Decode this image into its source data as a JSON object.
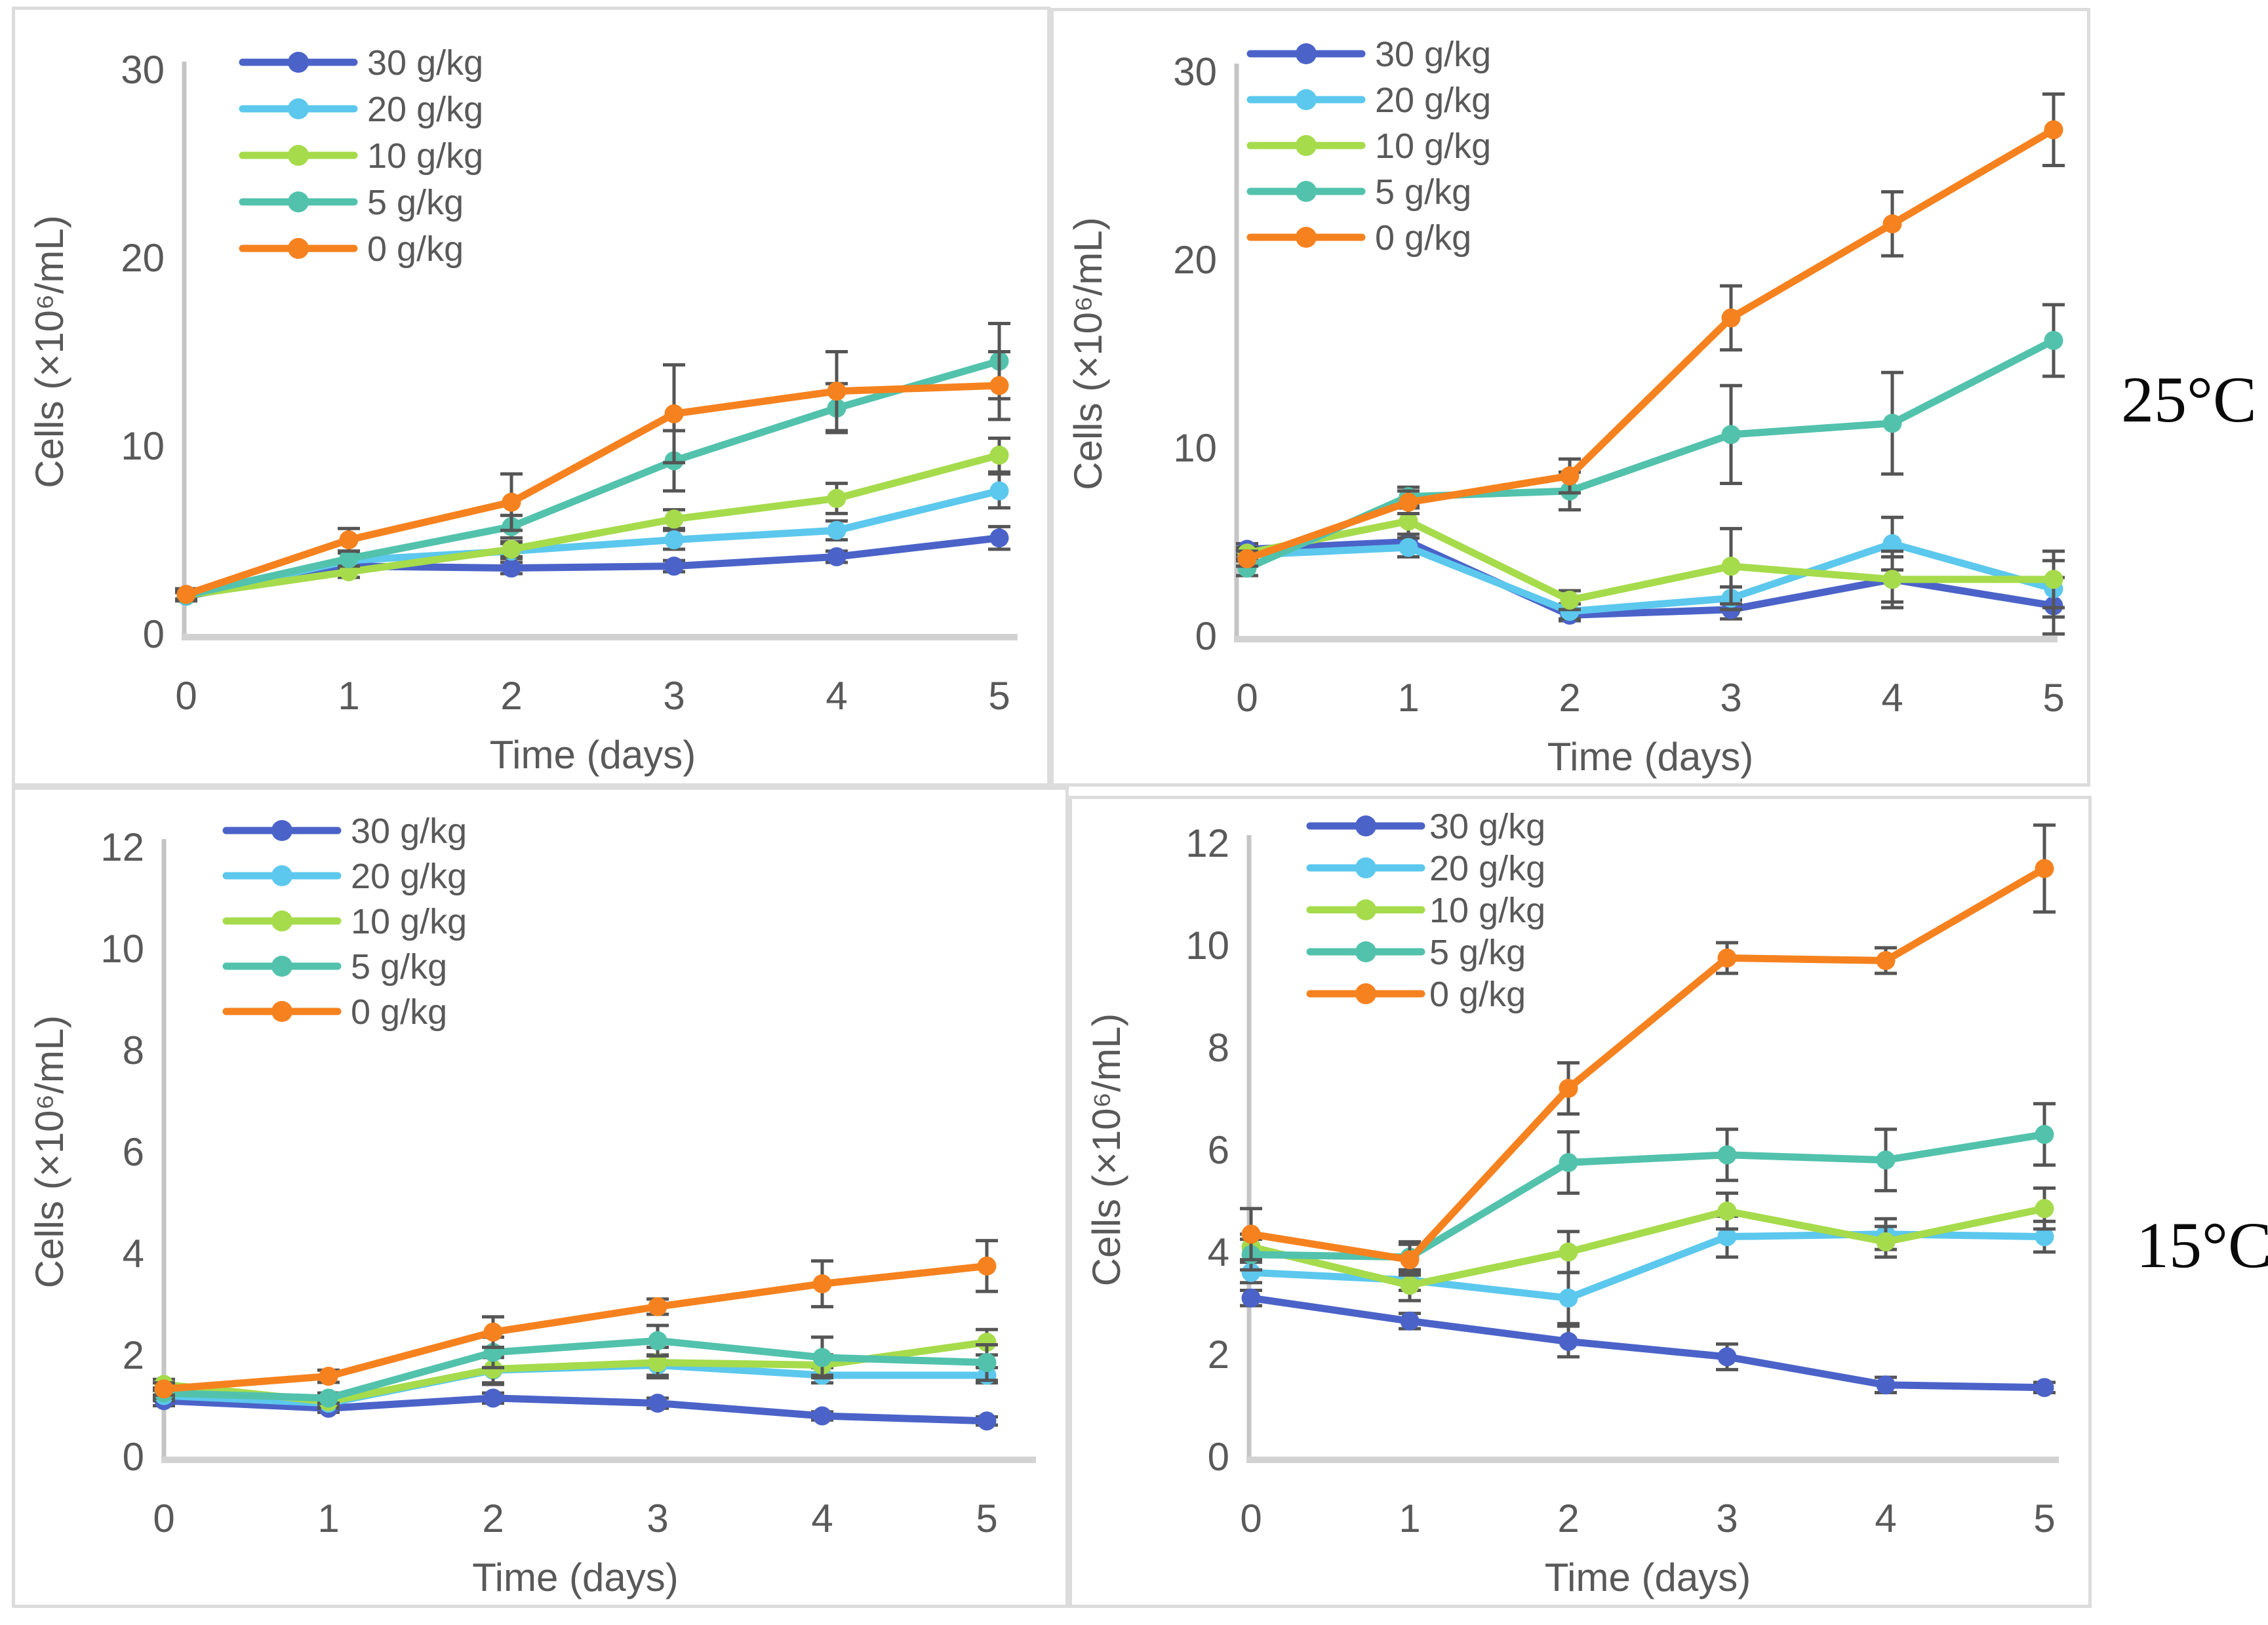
{
  "figure": {
    "temperature_labels": [
      {
        "text": "25°C"
      },
      {
        "text": "15°C"
      }
    ]
  },
  "axes_labels": {
    "x": "Time (days)",
    "y": "Cells (×10⁶/mL)"
  },
  "legend_items": [
    {
      "label": "30 g/kg",
      "color": "#4B63C8"
    },
    {
      "label": "20 g/kg",
      "color": "#5CC8ED"
    },
    {
      "label": "10 g/kg",
      "color": "#A6DB4C"
    },
    {
      "label": "5 g/kg",
      "color": "#52C2AC"
    },
    {
      "label": "0 g/kg",
      "color": "#F5821F"
    }
  ],
  "colors": {
    "tick_text": "#595959",
    "error_bar": "#555555",
    "y_axis_line": "#c5c5c5",
    "x_axis_line": "#d2d2d2",
    "panel_border": "#dcdcdc"
  },
  "chart_data": [
    {
      "id": "top-left",
      "type": "line",
      "title": "",
      "row_label": "25°C",
      "xlabel": "Time (days)",
      "ylabel": "Cells (×10⁶/mL)",
      "x": [
        0,
        1,
        2,
        3,
        4,
        5
      ],
      "ylim": [
        0,
        30
      ],
      "yticks": [
        0,
        10,
        20,
        30
      ],
      "grid": false,
      "legend_position": "top-left-inside",
      "error_bars": true,
      "series": [
        {
          "name": "30 g/kg",
          "color": "#4B63C8",
          "values": [
            2.0,
            3.6,
            3.5,
            3.6,
            4.1,
            5.1
          ],
          "errors": [
            0.2,
            0.3,
            0.3,
            0.3,
            0.3,
            0.6
          ]
        },
        {
          "name": "20 g/kg",
          "color": "#5CC8ED",
          "values": [
            2.0,
            3.9,
            4.4,
            5.0,
            5.5,
            7.6
          ],
          "errors": [
            0.2,
            0.4,
            0.4,
            0.5,
            0.5,
            0.9
          ]
        },
        {
          "name": "10 g/kg",
          "color": "#A6DB4C",
          "values": [
            2.05,
            3.3,
            4.5,
            6.1,
            7.2,
            9.5
          ],
          "errors": [
            0.2,
            0.3,
            0.4,
            0.5,
            0.8,
            0.9
          ]
        },
        {
          "name": "5 g/kg",
          "color": "#52C2AC",
          "values": [
            2.05,
            4.0,
            5.7,
            9.2,
            12.0,
            14.5
          ],
          "errors": [
            0.3,
            0.4,
            0.6,
            1.6,
            1.3,
            2.0
          ]
        },
        {
          "name": "0 g/kg",
          "color": "#F5821F",
          "values": [
            2.1,
            5.0,
            7.0,
            11.7,
            12.9,
            13.2
          ],
          "errors": [
            0.3,
            0.6,
            1.5,
            2.6,
            2.1,
            1.8
          ]
        }
      ]
    },
    {
      "id": "top-right",
      "type": "line",
      "title": "",
      "row_label": "25°C",
      "xlabel": "Time (days)",
      "ylabel": "Cells (×10⁶/mL)",
      "x": [
        0,
        1,
        2,
        3,
        4,
        5
      ],
      "ylim": [
        0,
        30
      ],
      "yticks": [
        0,
        10,
        20,
        30
      ],
      "grid": false,
      "legend_position": "top-left-inside",
      "error_bars": true,
      "series": [
        {
          "name": "30 g/kg",
          "color": "#4B63C8",
          "values": [
            4.6,
            5.0,
            1.1,
            1.4,
            3.0,
            1.6
          ],
          "errors": [
            0.3,
            0.4,
            0.3,
            0.5,
            1.2,
            1.5
          ]
        },
        {
          "name": "20 g/kg",
          "color": "#5CC8ED",
          "values": [
            4.3,
            4.7,
            1.3,
            2.0,
            4.9,
            2.5
          ],
          "errors": [
            0.3,
            0.5,
            0.4,
            0.6,
            1.4,
            1.5
          ]
        },
        {
          "name": "10 g/kg",
          "color": "#A6DB4C",
          "values": [
            4.4,
            6.1,
            1.9,
            3.7,
            3.0,
            3.0
          ],
          "errors": [
            0.3,
            0.7,
            0.5,
            2.0,
            1.5,
            1.5
          ]
        },
        {
          "name": "5 g/kg",
          "color": "#52C2AC",
          "values": [
            3.6,
            7.4,
            7.7,
            10.7,
            11.3,
            15.7
          ],
          "errors": [
            0.4,
            0.5,
            1.0,
            2.6,
            2.7,
            1.9
          ]
        },
        {
          "name": "0 g/kg",
          "color": "#F5821F",
          "values": [
            4.1,
            7.1,
            8.5,
            16.9,
            21.9,
            26.9
          ],
          "errors": [
            0.4,
            0.6,
            0.9,
            1.7,
            1.7,
            1.9
          ]
        }
      ]
    },
    {
      "id": "bottom-left",
      "type": "line",
      "title": "",
      "row_label": "15°C",
      "xlabel": "Time (days)",
      "ylabel": "Cells (×10⁶/mL)",
      "x": [
        0,
        1,
        2,
        3,
        4,
        5
      ],
      "ylim": [
        0,
        12
      ],
      "yticks": [
        0,
        2,
        4,
        6,
        8,
        10,
        12
      ],
      "grid": false,
      "legend_position": "top-left-inside",
      "error_bars": true,
      "series": [
        {
          "name": "30 g/kg",
          "color": "#4B63C8",
          "values": [
            1.1,
            0.95,
            1.15,
            1.05,
            0.8,
            0.7
          ],
          "errors": [
            0.1,
            0.08,
            0.1,
            0.1,
            0.08,
            0.08
          ]
        },
        {
          "name": "20 g/kg",
          "color": "#5CC8ED",
          "values": [
            1.2,
            1.05,
            1.7,
            1.8,
            1.6,
            1.6
          ],
          "errors": [
            0.1,
            0.1,
            0.25,
            0.2,
            0.15,
            0.15
          ]
        },
        {
          "name": "10 g/kg",
          "color": "#A6DB4C",
          "values": [
            1.42,
            1.08,
            1.72,
            1.85,
            1.8,
            2.25
          ],
          "errors": [
            0.1,
            0.1,
            0.3,
            0.3,
            0.2,
            0.25
          ]
        },
        {
          "name": "5 g/kg",
          "color": "#52C2AC",
          "values": [
            1.25,
            1.15,
            2.05,
            2.28,
            1.95,
            1.85
          ],
          "errors": [
            0.1,
            0.1,
            0.3,
            0.3,
            0.4,
            0.35
          ]
        },
        {
          "name": "0 g/kg",
          "color": "#F5821F",
          "values": [
            1.33,
            1.58,
            2.45,
            2.95,
            3.4,
            3.75
          ],
          "errors": [
            0.12,
            0.12,
            0.3,
            0.15,
            0.45,
            0.5
          ]
        }
      ]
    },
    {
      "id": "bottom-right",
      "type": "line",
      "title": "",
      "row_label": "15°C",
      "xlabel": "Time (days)",
      "ylabel": "Cells (×10⁶/mL)",
      "x": [
        0,
        1,
        2,
        3,
        4,
        5
      ],
      "ylim": [
        0,
        12
      ],
      "yticks": [
        0,
        2,
        4,
        6,
        8,
        10,
        12
      ],
      "grid": false,
      "legend_position": "top-left-inside",
      "error_bars": true,
      "series": [
        {
          "name": "30 g/kg",
          "color": "#4B63C8",
          "values": [
            3.1,
            2.65,
            2.25,
            1.95,
            1.4,
            1.35
          ],
          "errors": [
            0.15,
            0.15,
            0.3,
            0.25,
            0.15,
            0.1
          ]
        },
        {
          "name": "20 g/kg",
          "color": "#5CC8ED",
          "values": [
            3.6,
            3.45,
            3.1,
            4.3,
            4.35,
            4.3
          ],
          "errors": [
            0.2,
            0.2,
            0.5,
            0.4,
            0.3,
            0.3
          ]
        },
        {
          "name": "10 g/kg",
          "color": "#A6DB4C",
          "values": [
            4.1,
            3.35,
            4.0,
            4.8,
            4.2,
            4.85
          ],
          "errors": [
            0.25,
            0.3,
            0.4,
            0.35,
            0.3,
            0.4
          ]
        },
        {
          "name": "5 g/kg",
          "color": "#52C2AC",
          "values": [
            3.95,
            3.9,
            5.75,
            5.9,
            5.8,
            6.3
          ],
          "errors": [
            0.3,
            0.3,
            0.6,
            0.5,
            0.6,
            0.6
          ]
        },
        {
          "name": "0 g/kg",
          "color": "#F5821F",
          "values": [
            4.35,
            3.85,
            7.2,
            9.75,
            9.7,
            11.5
          ],
          "errors": [
            0.5,
            0.3,
            0.5,
            0.3,
            0.25,
            0.85
          ]
        }
      ]
    }
  ]
}
